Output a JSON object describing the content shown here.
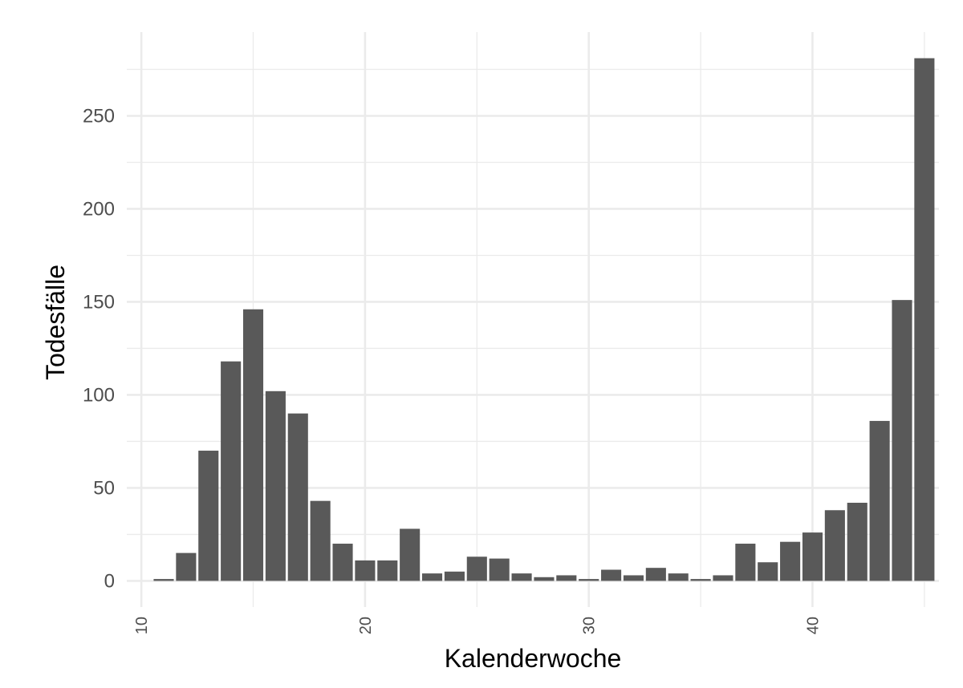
{
  "chart_data": {
    "type": "bar",
    "xlabel": "Kalenderwoche",
    "ylabel": "Todesfälle",
    "x": [
      11,
      12,
      13,
      14,
      15,
      16,
      17,
      18,
      19,
      20,
      21,
      22,
      23,
      24,
      25,
      26,
      27,
      28,
      29,
      30,
      31,
      32,
      33,
      34,
      35,
      36,
      37,
      38,
      39,
      40,
      41,
      42,
      43,
      44,
      45
    ],
    "values": [
      1,
      15,
      70,
      118,
      146,
      102,
      90,
      43,
      20,
      11,
      11,
      28,
      4,
      5,
      13,
      12,
      4,
      2,
      3,
      1,
      6,
      3,
      7,
      4,
      1,
      3,
      20,
      10,
      21,
      26,
      38,
      42,
      86,
      151,
      281
    ],
    "xlim": [
      9.35,
      45.65
    ],
    "ylim": [
      -14.05,
      295.05
    ],
    "xticks": [
      10,
      20,
      30,
      40
    ],
    "yticks": [
      0,
      50,
      100,
      150,
      200,
      250
    ],
    "xtick_labels": [
      "10",
      "20",
      "30",
      "40"
    ],
    "ytick_labels": [
      "0",
      "50",
      "100",
      "150",
      "200",
      "250"
    ],
    "grid": true,
    "bar_color": "#595959",
    "grid_color": "#ebebeb",
    "background": "#ffffff"
  }
}
